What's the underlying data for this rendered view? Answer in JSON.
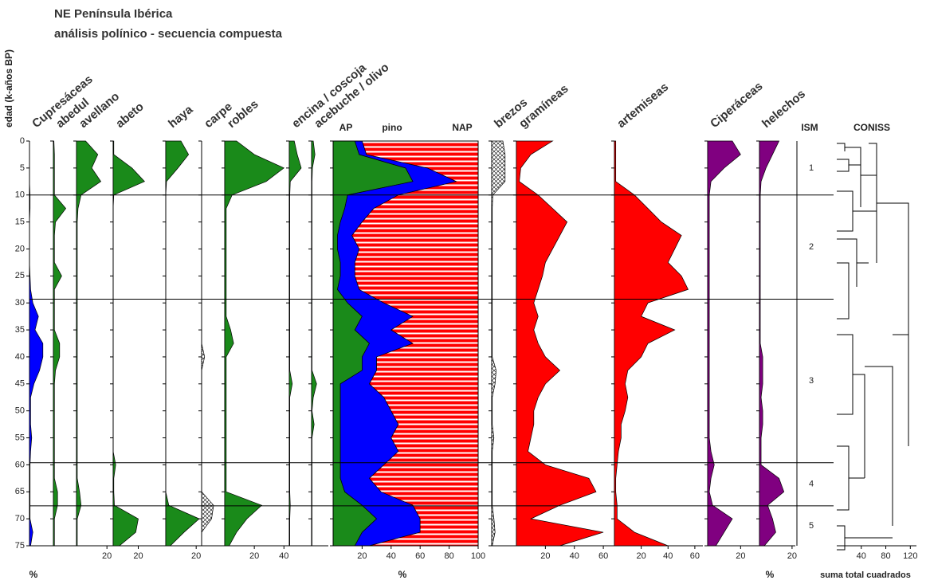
{
  "chart_data": {
    "type": "pollen",
    "title": [
      "NE Península Ibérica",
      "análisis polínico - secuencia compuesta"
    ],
    "ylabel": "edad (k-años BP)",
    "ylim": [
      0,
      75
    ],
    "yticks": [
      0,
      5,
      10,
      15,
      20,
      25,
      30,
      35,
      40,
      45,
      50,
      55,
      60,
      65,
      70,
      75
    ],
    "ages": [
      0,
      2.5,
      5,
      7.5,
      10,
      12.5,
      15,
      17.5,
      20,
      22.5,
      25,
      27.5,
      30,
      32.5,
      35,
      37.5,
      40,
      42.5,
      45,
      47.5,
      50,
      52.5,
      55,
      57.5,
      60,
      62.5,
      65,
      67.5,
      70,
      72.5,
      75
    ],
    "panels": [
      {
        "name": "Cupresáceas",
        "color": "#0000ff",
        "xlim": [
          0,
          20
        ],
        "values": [
          0,
          0,
          0,
          0,
          0.5,
          0.5,
          0,
          0,
          0,
          0,
          0.5,
          1,
          3,
          8,
          5,
          12,
          12,
          9,
          4,
          1,
          1,
          1,
          2,
          1,
          0.5,
          0.5,
          0.5,
          0.5,
          0.5,
          3,
          1
        ]
      },
      {
        "name": "abedul",
        "color": "#1a8a1a",
        "xlim": [
          0,
          20
        ],
        "values": [
          0.5,
          1,
          1,
          1,
          1,
          12,
          2,
          1,
          1,
          1,
          8,
          1,
          1,
          1,
          1,
          6,
          6,
          2,
          1,
          1,
          1,
          1,
          1,
          1,
          1,
          1,
          4,
          4,
          1,
          1,
          1
        ]
      },
      {
        "name": "avellano",
        "color": "#1a8a1a",
        "xlim": [
          0,
          22
        ],
        "xticks": [
          20
        ],
        "values": [
          6,
          14,
          10,
          16,
          3,
          1,
          0.5,
          0.5,
          0.5,
          0.5,
          0.5,
          0.5,
          0.5,
          0.5,
          0.5,
          0.5,
          0.5,
          0.5,
          0.5,
          0.5,
          0.5,
          0.5,
          0.5,
          0.5,
          0.5,
          0.5,
          2,
          3,
          0.5,
          0.5,
          0.5
        ]
      },
      {
        "name": "abeto",
        "color": "#1a8a1a",
        "xlim": [
          0,
          40
        ],
        "xticks": [
          20
        ],
        "values": [
          0.5,
          0.5,
          15,
          25,
          0.5,
          0,
          0,
          0,
          0,
          0,
          0,
          0,
          0,
          0,
          0,
          0,
          0,
          0,
          0,
          0,
          0,
          0,
          0,
          0,
          2,
          0.5,
          0.5,
          1,
          20,
          18,
          5
        ]
      },
      {
        "name": "haya",
        "color": "#1a8a1a",
        "xlim": [
          0,
          22
        ],
        "xticks": [
          20
        ],
        "values": [
          10,
          15,
          8,
          0.5,
          0,
          0,
          0,
          0,
          0,
          0,
          0,
          0,
          0,
          0,
          0,
          0,
          0,
          0,
          0,
          0,
          0,
          0,
          0,
          0,
          0,
          0,
          0,
          2,
          22,
          12,
          3
        ]
      },
      {
        "name": "carpe",
        "color": "#ffffff",
        "xlim": [
          0,
          20
        ],
        "values": [
          0,
          0,
          0,
          0,
          0,
          0,
          0,
          0,
          0,
          0,
          0,
          0,
          0,
          0,
          0,
          0,
          3,
          0,
          0,
          0,
          0,
          0,
          0,
          0,
          0,
          0,
          0,
          12,
          10,
          0,
          0
        ]
      },
      {
        "name": "robles",
        "color": "#1a8a1a",
        "xlim": [
          0,
          42
        ],
        "xticks": [
          20,
          40
        ],
        "values": [
          8,
          20,
          40,
          28,
          5,
          1,
          1,
          1,
          1,
          1,
          1,
          1,
          1,
          1,
          4,
          6,
          1,
          1,
          1,
          1,
          1,
          1,
          1,
          1,
          1,
          1,
          1,
          25,
          15,
          8,
          3
        ]
      },
      {
        "name": "encina / coscoja",
        "color": "#1a8a1a",
        "xlim": [
          0,
          20
        ],
        "values": [
          5,
          8,
          12,
          1,
          0.5,
          0.5,
          0.5,
          0.5,
          0.5,
          0.5,
          0.5,
          0.5,
          0.5,
          0.5,
          0.5,
          0.5,
          0.5,
          0.5,
          3,
          0.5,
          0.5,
          0.5,
          0.5,
          0.5,
          0.5,
          0.5,
          0.5,
          1,
          0.5,
          0.5,
          0.5
        ]
      },
      {
        "name": "acebuche / olivo",
        "color": "#1a8a1a",
        "xlim": [
          0,
          20
        ],
        "values": [
          2,
          4,
          1,
          0.5,
          0.5,
          0.5,
          0.5,
          0.5,
          0.5,
          0.5,
          0.5,
          0.5,
          0.5,
          0.5,
          0.5,
          0.5,
          0.5,
          0.5,
          6,
          2,
          0.5,
          3,
          0.5,
          0.5,
          0.5,
          0.5,
          0.5,
          0.5,
          0.5,
          0.5,
          0.5
        ]
      },
      {
        "name": "brezos",
        "color": "#ffffff",
        "xlim": [
          0,
          20
        ],
        "values": [
          10,
          12,
          12,
          12,
          1,
          0.5,
          0.5,
          0.5,
          0.5,
          0.5,
          0.5,
          0.5,
          0.5,
          0.5,
          0.5,
          0.5,
          0.5,
          4,
          3,
          0.5,
          0.5,
          0.5,
          2,
          0.5,
          0.5,
          0.5,
          0.5,
          0.5,
          2,
          3,
          0.5
        ]
      },
      {
        "name": "gramíneas",
        "color": "#ff0000",
        "xlim": [
          0,
          66
        ],
        "xticks": [
          20,
          40,
          60
        ],
        "values": [
          25,
          10,
          3,
          2,
          15,
          25,
          35,
          30,
          25,
          20,
          18,
          15,
          12,
          15,
          12,
          15,
          20,
          30,
          20,
          15,
          12,
          12,
          10,
          8,
          20,
          50,
          55,
          30,
          10,
          60,
          30
        ]
      },
      {
        "name": "artemiseas",
        "color": "#ff0000",
        "xlim": [
          0,
          66
        ],
        "xticks": [
          20,
          40,
          60
        ],
        "values": [
          1,
          1,
          1,
          1,
          15,
          25,
          35,
          50,
          45,
          40,
          50,
          55,
          25,
          20,
          45,
          25,
          20,
          10,
          8,
          10,
          8,
          5,
          5,
          3,
          2,
          1,
          1,
          2,
          2,
          15,
          40
        ]
      },
      {
        "name": "Ciperáceas",
        "color": "#800080",
        "xlim": [
          0,
          30
        ],
        "xticks": [
          20
        ],
        "values": [
          15,
          20,
          10,
          2,
          1,
          1,
          1,
          1,
          1,
          1,
          1,
          1,
          1,
          1,
          1,
          1,
          1,
          1,
          1,
          1,
          1,
          1,
          1,
          2,
          4,
          2,
          1,
          3,
          15,
          10,
          5
        ]
      },
      {
        "name": "helechos",
        "color": "#800080",
        "xlim": [
          0,
          22
        ],
        "xticks": [
          20
        ],
        "values": [
          12,
          8,
          4,
          1,
          0.5,
          0.5,
          0.5,
          0.5,
          0.5,
          0.5,
          0.5,
          0.5,
          0.5,
          0.5,
          0.5,
          0.5,
          2,
          2,
          2,
          1,
          2,
          2,
          1,
          1,
          1,
          12,
          15,
          5,
          8,
          10,
          3
        ]
      }
    ],
    "ap": {
      "xlim": [
        0,
        100
      ],
      "xticks": [
        20,
        40,
        60,
        80,
        100
      ],
      "series": [
        {
          "name": "AP",
          "color": "#1a8a1a",
          "values": [
            15,
            18,
            50,
            55,
            10,
            8,
            5,
            3,
            3,
            5,
            5,
            3,
            10,
            20,
            15,
            25,
            20,
            20,
            5,
            5,
            5,
            5,
            5,
            5,
            5,
            5,
            8,
            20,
            30,
            20,
            15
          ]
        },
        {
          "name": "pino",
          "color": "#0000ff",
          "values": [
            5,
            5,
            15,
            30,
            35,
            20,
            15,
            10,
            15,
            10,
            10,
            15,
            25,
            35,
            25,
            30,
            10,
            10,
            20,
            30,
            35,
            40,
            35,
            40,
            30,
            20,
            25,
            35,
            30,
            40,
            10
          ]
        },
        {
          "name": "NAP",
          "color": "#ff0000",
          "values": [
            80,
            77,
            35,
            15,
            55,
            72,
            80,
            87,
            82,
            85,
            85,
            82,
            65,
            45,
            60,
            45,
            70,
            70,
            75,
            65,
            60,
            55,
            60,
            55,
            65,
            75,
            67,
            45,
            40,
            40,
            75
          ]
        }
      ]
    },
    "ism": {
      "title": "ISM",
      "zones": [
        {
          "label": "1",
          "top": 0,
          "bottom": 10
        },
        {
          "label": "2",
          "top": 10,
          "bottom": 29.3
        },
        {
          "label": "3",
          "top": 29.3,
          "bottom": 59.6
        },
        {
          "label": "4",
          "top": 59.6,
          "bottom": 67.6
        },
        {
          "label": "5",
          "top": 67.6,
          "bottom": 75
        }
      ]
    },
    "coniss": {
      "title": "CONISS",
      "xlim": [
        0,
        130
      ],
      "xticks": [
        40,
        80,
        120
      ],
      "xlabel": "suma total cuadrados"
    },
    "units": [
      "%",
      "%",
      "%"
    ]
  }
}
